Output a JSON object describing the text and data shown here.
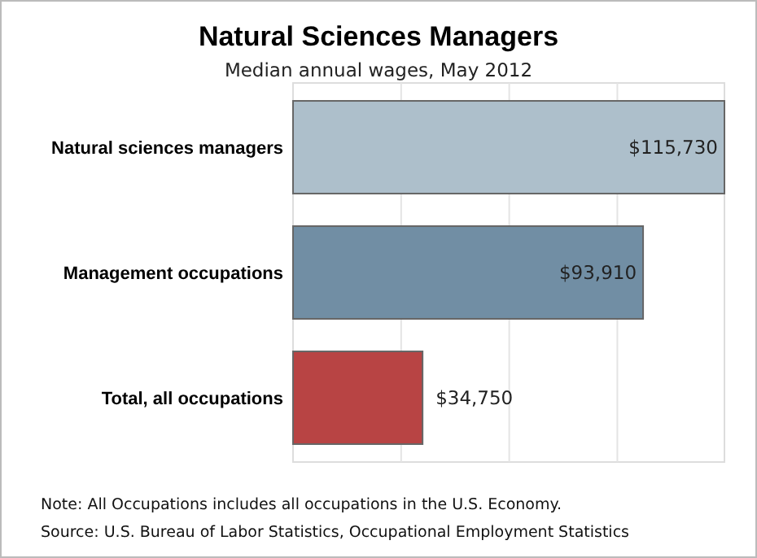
{
  "chart_data": {
    "type": "bar",
    "orientation": "horizontal",
    "title": "Natural Sciences Managers",
    "subtitle": "Median annual wages, May 2012",
    "categories": [
      "Natural sciences managers",
      "Management occupations",
      "Total, all occupations"
    ],
    "values": [
      115730,
      93910,
      34750
    ],
    "colors": [
      "#adbfcb",
      "#718ea4",
      "#b84444"
    ],
    "value_labels": [
      "$115,730",
      "$93,910",
      "$34,750"
    ],
    "xlim": [
      0,
      115730
    ],
    "xticks": [
      {
        "value": 29000,
        "label": null
      },
      {
        "value": 58000,
        "label": null
      },
      {
        "value": 87000,
        "label": null
      }
    ],
    "grid": "x",
    "tick_labels": "y",
    "annotations": [
      "Note: All Occupations includes all occupations in the U.S. Economy.",
      "Source: U.S. Bureau of Labor Statistics, Occupational Employment Statistics"
    ]
  }
}
